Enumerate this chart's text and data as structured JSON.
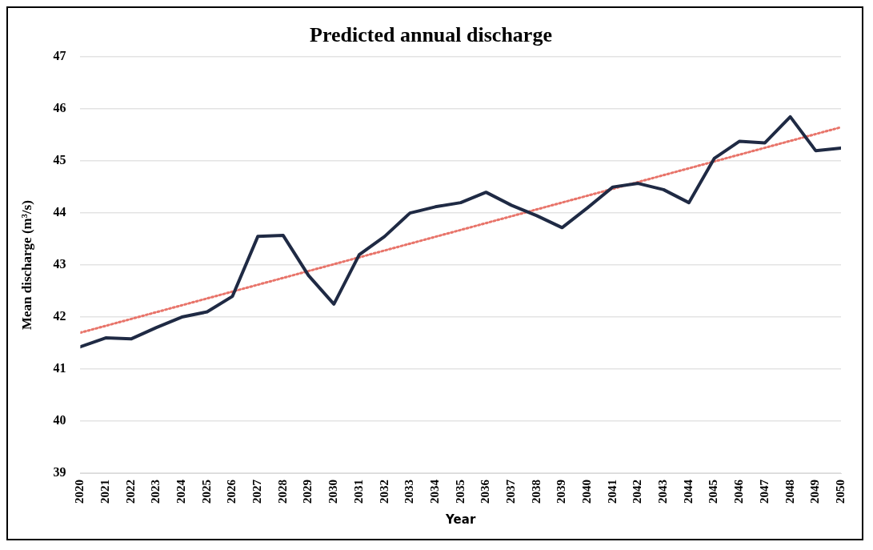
{
  "chart_data": {
    "type": "line",
    "title": "Predicted annual discharge",
    "xlabel": "Year",
    "ylabel": "Mean discharge (m³/s)",
    "x": [
      2020,
      2021,
      2022,
      2023,
      2024,
      2025,
      2026,
      2027,
      2028,
      2029,
      2030,
      2031,
      2032,
      2033,
      2034,
      2035,
      2036,
      2037,
      2038,
      2039,
      2040,
      2041,
      2042,
      2043,
      2044,
      2045,
      2046,
      2047,
      2048,
      2049,
      2050
    ],
    "series": [
      {
        "color": "#1f2a44",
        "values": [
          41.43,
          41.6,
          41.58,
          41.8,
          42.0,
          42.1,
          42.4,
          43.55,
          43.57,
          42.8,
          42.25,
          43.2,
          43.55,
          44.0,
          44.12,
          44.2,
          44.4,
          44.15,
          43.95,
          43.72,
          44.1,
          44.5,
          44.57,
          44.45,
          44.2,
          45.05,
          45.38,
          45.35,
          45.85,
          45.2,
          45.25
        ]
      },
      {
        "type": "line",
        "color": "#e8746a",
        "line_style": "dotted",
        "x": [
          2020,
          2050
        ],
        "values": [
          41.7,
          45.65
        ]
      }
    ],
    "xlim": [
      2020,
      2050
    ],
    "xticks": [
      2020,
      2021,
      2022,
      2023,
      2024,
      2025,
      2026,
      2027,
      2028,
      2029,
      2030,
      2031,
      2032,
      2033,
      2034,
      2035,
      2036,
      2037,
      2038,
      2039,
      2040,
      2041,
      2042,
      2043,
      2044,
      2045,
      2046,
      2047,
      2048,
      2049,
      2050
    ],
    "ylim": [
      39,
      47
    ],
    "yticks": [
      39,
      40,
      41,
      42,
      43,
      44,
      45,
      46,
      47
    ],
    "grid": "y",
    "legend": false,
    "marker": "none",
    "line_style": "solid"
  }
}
